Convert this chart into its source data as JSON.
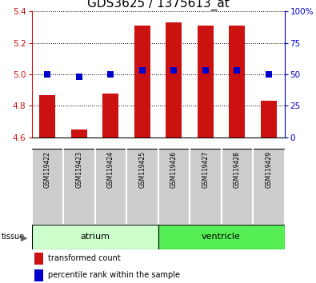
{
  "title": "GDS3625 / 1375613_at",
  "samples": [
    "GSM119422",
    "GSM119423",
    "GSM119424",
    "GSM119425",
    "GSM119426",
    "GSM119427",
    "GSM119428",
    "GSM119429"
  ],
  "transformed_counts": [
    4.87,
    4.65,
    4.88,
    5.31,
    5.33,
    5.31,
    5.31,
    4.83
  ],
  "percentile_ranks": [
    50,
    48,
    50,
    53,
    53,
    53,
    53,
    50
  ],
  "ylim_left": [
    4.6,
    5.4
  ],
  "ylim_right": [
    0,
    100
  ],
  "yticks_left": [
    4.6,
    4.8,
    5.0,
    5.2,
    5.4
  ],
  "yticks_right": [
    0,
    25,
    50,
    75,
    100
  ],
  "groups": [
    {
      "label": "atrium",
      "start": 0,
      "end": 3,
      "color_light": "#ccffcc",
      "color_dark": "#66ee66"
    },
    {
      "label": "ventricle",
      "start": 4,
      "end": 7,
      "color_light": "#66ee66",
      "color_dark": "#44cc44"
    }
  ],
  "bar_color": "#cc1111",
  "dot_color": "#0000cc",
  "bar_width": 0.5,
  "dot_size": 40,
  "title_fontsize": 11,
  "tick_fontsize": 7.5,
  "sample_fontsize": 5.5,
  "tissue_fontsize": 8,
  "legend_fontsize": 7,
  "atrium_color": "#ccffcc",
  "ventricle_color": "#55ee55",
  "sample_box_color": "#cccccc",
  "legend_bar_label": "transformed count",
  "legend_dot_label": "percentile rank within the sample"
}
